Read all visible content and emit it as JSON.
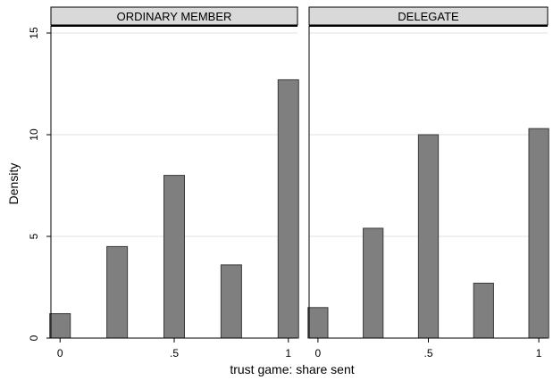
{
  "chart_data": {
    "type": "bar",
    "xlabel": "trust game: share sent",
    "ylabel": "Density",
    "ylim": [
      0,
      15
    ],
    "xlim": [
      -0.04,
      1.04
    ],
    "bar_width": 0.09,
    "y_ticks": [
      0,
      5,
      10,
      15
    ],
    "y_tick_labels": [
      "0",
      "5",
      "10",
      "15"
    ],
    "x_ticks": [
      0,
      0.5,
      1
    ],
    "x_tick_labels": [
      "0",
      ".5",
      "1"
    ],
    "grid": "horizontal",
    "colors": {
      "bar_fill": "#7f7f7f",
      "bar_stroke": "#3a3a3a",
      "strip_fill": "#d9d9d9",
      "gridline": "#e2e2e2",
      "axis": "#000000"
    },
    "panels": [
      {
        "label": "ORDINARY MEMBER",
        "bars": [
          {
            "x": 0,
            "density": 1.2
          },
          {
            "x": 0.25,
            "density": 4.5
          },
          {
            "x": 0.5,
            "density": 8.0
          },
          {
            "x": 0.75,
            "density": 3.6
          },
          {
            "x": 1,
            "density": 12.7
          }
        ]
      },
      {
        "label": "DELEGATE",
        "bars": [
          {
            "x": 0,
            "density": 1.5
          },
          {
            "x": 0.25,
            "density": 5.4
          },
          {
            "x": 0.5,
            "density": 10.0
          },
          {
            "x": 0.75,
            "density": 2.7
          },
          {
            "x": 1,
            "density": 10.3
          }
        ]
      }
    ]
  }
}
